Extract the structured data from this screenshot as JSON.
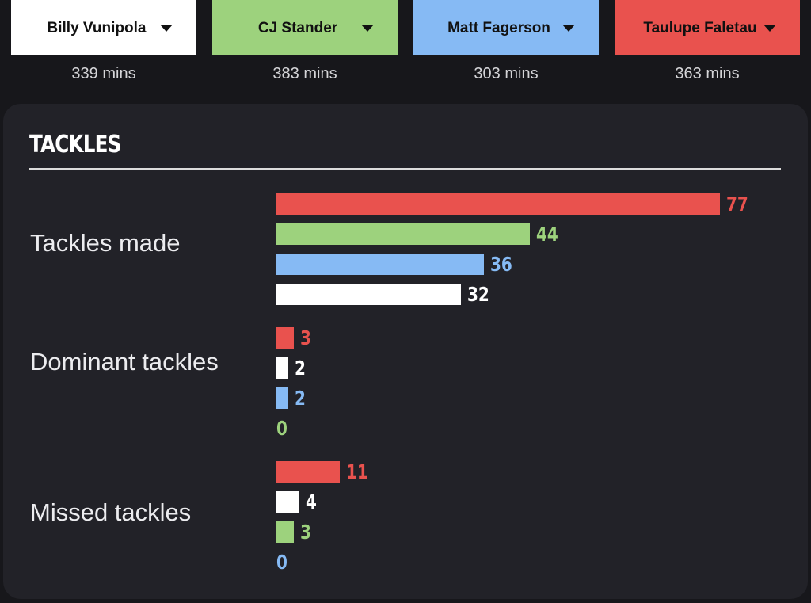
{
  "colors": {
    "billy": "#ffffff",
    "cj": "#9dd27d",
    "matt": "#86baf4",
    "taulupe": "#e9524e"
  },
  "players": [
    {
      "id": "billy",
      "name": "Billy Vunipola",
      "mins": "339 mins"
    },
    {
      "id": "cj",
      "name": "CJ Stander",
      "mins": "383 mins"
    },
    {
      "id": "matt",
      "name": "Matt Fagerson",
      "mins": "303 mins"
    },
    {
      "id": "taulupe",
      "name": "Taulupe Faletau",
      "mins": "363 mins"
    }
  ],
  "section": {
    "title": "TACKLES"
  },
  "stats": [
    {
      "label": "Tackles made",
      "rows": [
        {
          "player": "taulupe",
          "value": 77
        },
        {
          "player": "cj",
          "value": 44
        },
        {
          "player": "matt",
          "value": 36
        },
        {
          "player": "billy",
          "value": 32
        }
      ]
    },
    {
      "label": "Dominant tackles",
      "rows": [
        {
          "player": "taulupe",
          "value": 3
        },
        {
          "player": "billy",
          "value": 2
        },
        {
          "player": "matt",
          "value": 2
        },
        {
          "player": "cj",
          "value": 0
        }
      ]
    },
    {
      "label": "Missed tackles",
      "rows": [
        {
          "player": "taulupe",
          "value": 11
        },
        {
          "player": "billy",
          "value": 4
        },
        {
          "player": "cj",
          "value": 3
        },
        {
          "player": "matt",
          "value": 0
        }
      ]
    }
  ]
}
